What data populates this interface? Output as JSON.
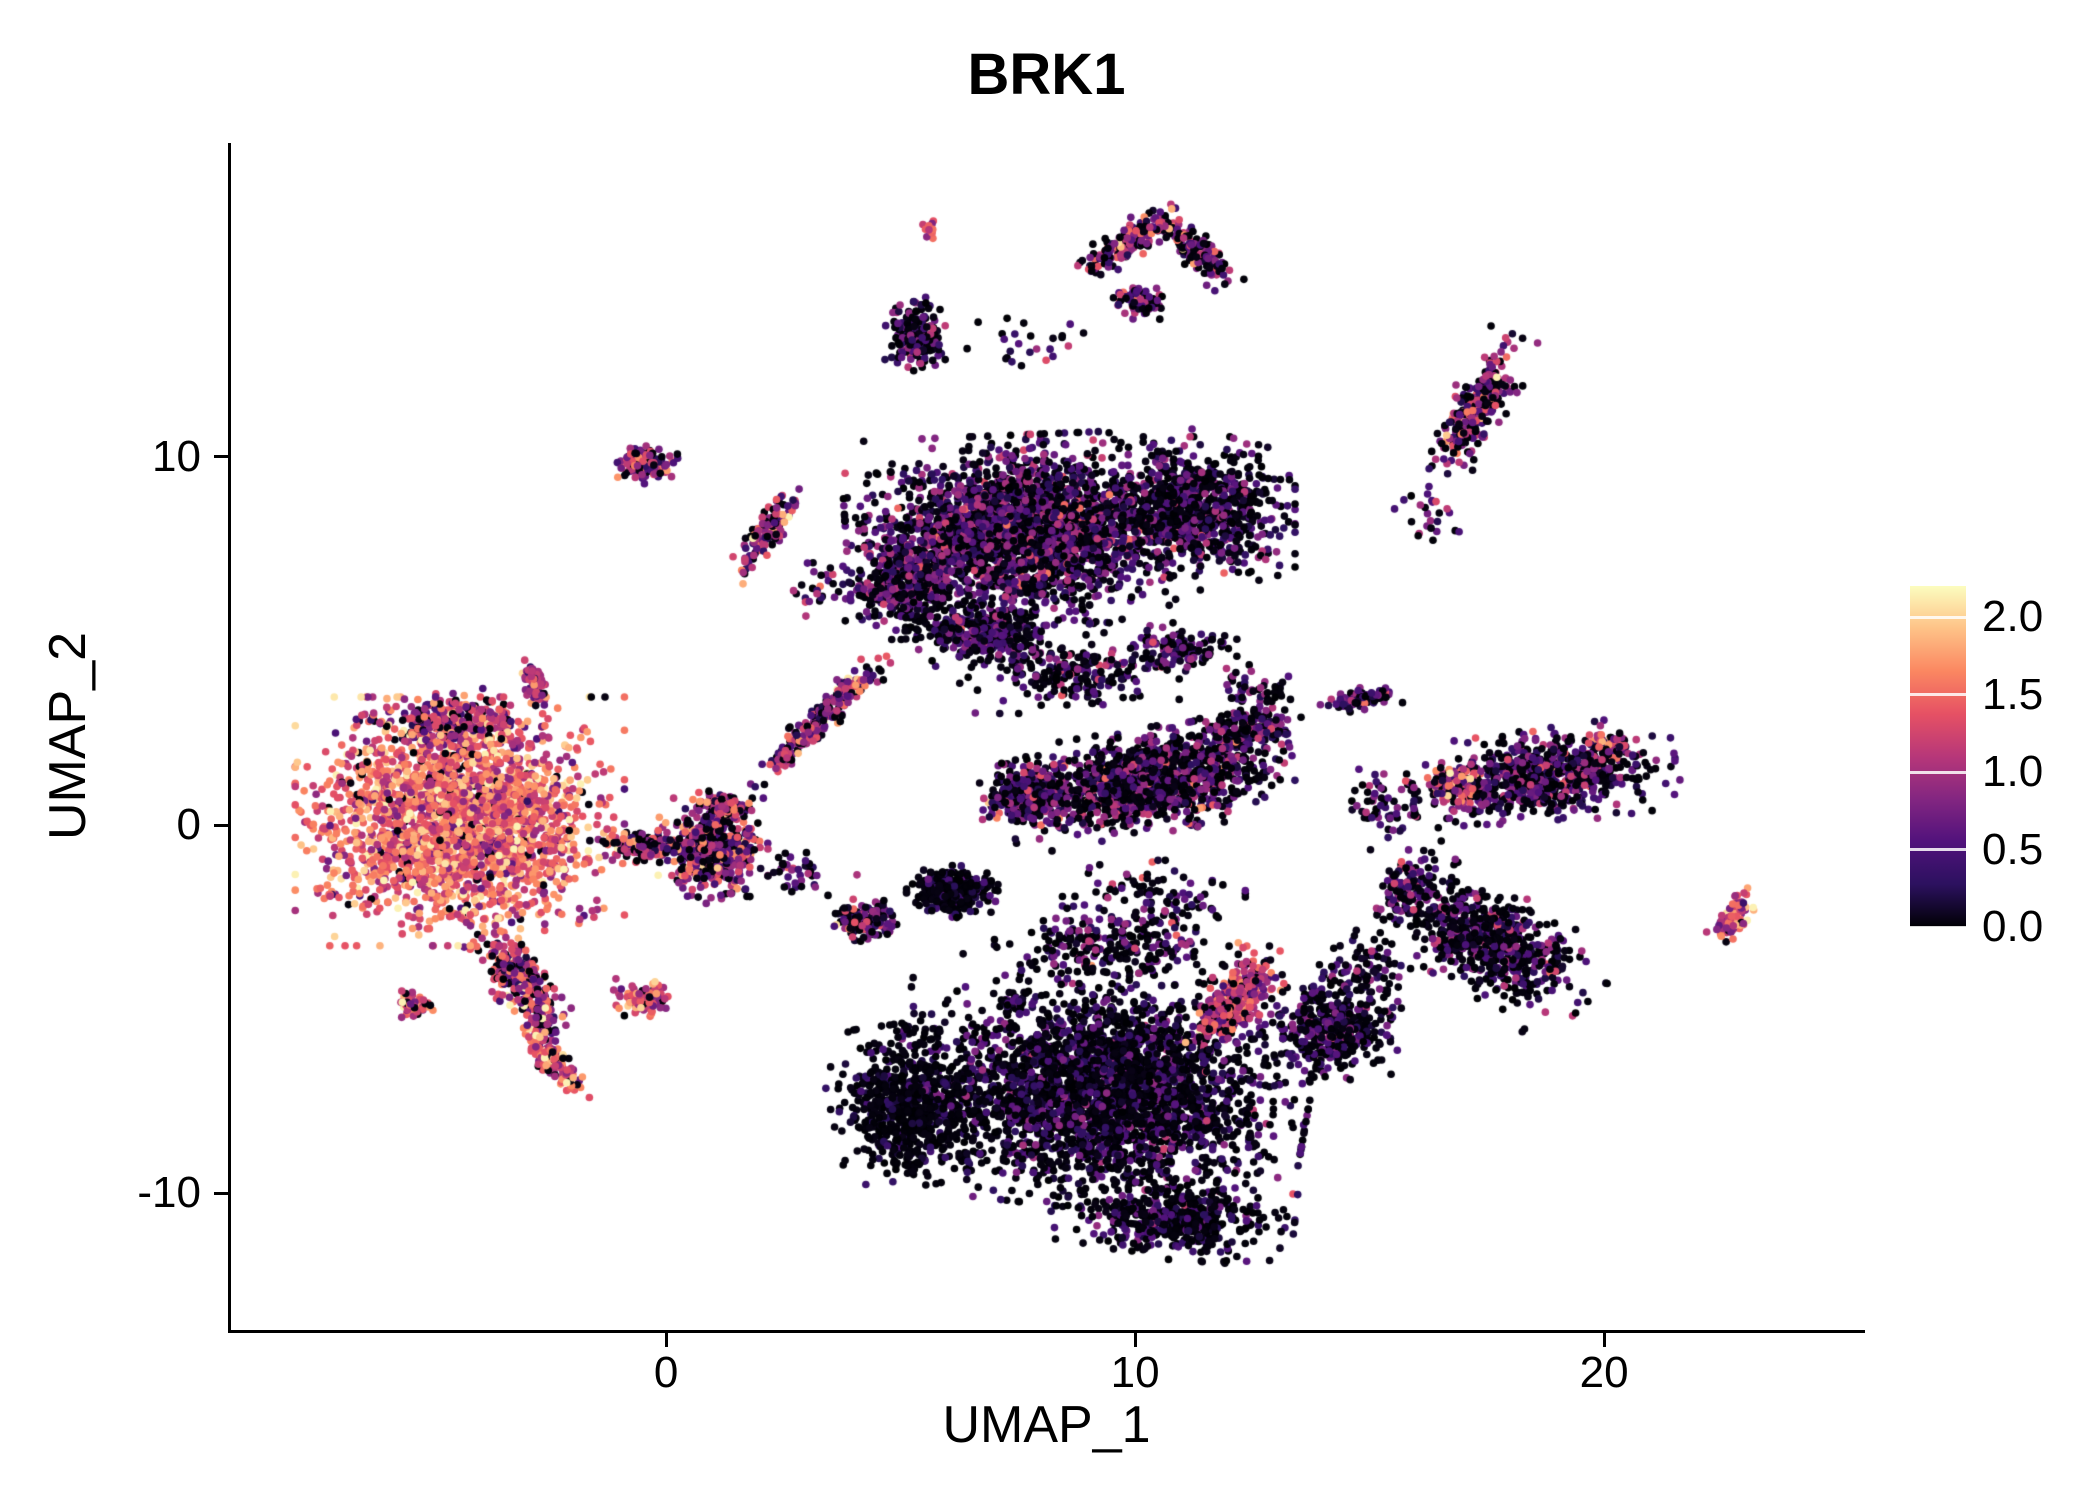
{
  "chart_data": {
    "type": "scatter",
    "title": "BRK1",
    "xlabel": "UMAP_1",
    "ylabel": "UMAP_2",
    "xlim": [
      -9.28,
      25.5
    ],
    "ylim": [
      -13.72,
      18.53
    ],
    "x_ticks": {
      "values": [
        0,
        10,
        20
      ],
      "labels": [
        "0",
        "10",
        "20"
      ]
    },
    "y_ticks": {
      "values": [
        -10,
        0,
        10
      ],
      "labels": [
        "-10",
        "0",
        "10"
      ]
    },
    "colorbar": {
      "ticks": [
        0,
        0.5,
        1,
        1.5,
        2
      ],
      "labels": [
        "0.0",
        "0.5",
        "1.0",
        "1.5",
        "2.0"
      ],
      "max": 2.2,
      "colormap": "magma",
      "position": "right"
    },
    "colormap_stops": [
      [
        0,
        "#000004"
      ],
      [
        0.125,
        "#2c115f"
      ],
      [
        0.25,
        "#51127c"
      ],
      [
        0.375,
        "#832681"
      ],
      [
        0.5,
        "#b73779"
      ],
      [
        0.625,
        "#e65164"
      ],
      [
        0.75,
        "#fb8761"
      ],
      [
        0.875,
        "#fec287"
      ],
      [
        1,
        "#fcfdbf"
      ]
    ],
    "grid": false,
    "legend_position": "right",
    "point_radius_px": 3.8,
    "seed": 1337,
    "clusters": [
      {
        "name": "left-main",
        "cx": -4.4,
        "cy": 0.1,
        "rx": 2.7,
        "ry": 2.6,
        "rot": 0,
        "n": 2600,
        "p0": 0.04,
        "mean": 1.45,
        "sd": 0.38
      },
      {
        "name": "left-top-fringe",
        "cx": -4.6,
        "cy": 2.8,
        "rx": 1.6,
        "ry": 0.7,
        "rot": 0,
        "n": 250,
        "p0": 0.15,
        "mean": 1.0,
        "sd": 0.45
      },
      {
        "name": "left-tail",
        "cx": -3.1,
        "cy": -4.3,
        "rx": 0.5,
        "ry": 1.5,
        "rot": 27,
        "n": 330,
        "p0": 0.12,
        "mean": 1.05,
        "sd": 0.5
      },
      {
        "name": "left-thin-tail",
        "cx": -2.4,
        "cy": -6.5,
        "rx": 0.3,
        "ry": 0.9,
        "rot": 27,
        "n": 140,
        "p0": 0.12,
        "mean": 1.3,
        "sd": 0.45
      },
      {
        "name": "left-small-clump",
        "cx": -5.4,
        "cy": -4.9,
        "rx": 0.35,
        "ry": 0.3,
        "rot": 0,
        "n": 55,
        "p0": 0.12,
        "mean": 1.3,
        "sd": 0.4
      },
      {
        "name": "left-bridge",
        "cx": -0.5,
        "cy": -0.6,
        "rx": 0.8,
        "ry": 0.35,
        "rot": -5,
        "n": 150,
        "p0": 0.3,
        "mean": 0.9,
        "sd": 0.5
      },
      {
        "name": "centerleft-blob",
        "cx": 1.0,
        "cy": -0.7,
        "rx": 0.9,
        "ry": 1.1,
        "rot": 0,
        "n": 520,
        "p0": 0.25,
        "mean": 0.85,
        "sd": 0.5
      },
      {
        "name": "centerleft-hook",
        "cx": 1.2,
        "cy": 0.5,
        "rx": 0.5,
        "ry": 0.3,
        "rot": -25,
        "n": 90,
        "p0": 0.15,
        "mean": 1.1,
        "sd": 0.4
      },
      {
        "name": "pink-clump-below",
        "cx": -0.5,
        "cy": -4.7,
        "rx": 0.55,
        "ry": 0.4,
        "rot": 0,
        "n": 120,
        "p0": 0.1,
        "mean": 1.3,
        "sd": 0.4
      },
      {
        "name": "top-main",
        "cx": 7.6,
        "cy": 8.0,
        "rx": 2.9,
        "ry": 2.0,
        "rot": 3,
        "n": 2600,
        "p0": 0.38,
        "mean": 0.55,
        "sd": 0.38
      },
      {
        "name": "top-right-lobe",
        "cx": 11.2,
        "cy": 8.6,
        "rx": 1.7,
        "ry": 1.5,
        "rot": 0,
        "n": 900,
        "p0": 0.45,
        "mean": 0.45,
        "sd": 0.35
      },
      {
        "name": "top-left-lobe",
        "cx": 5.2,
        "cy": 6.6,
        "rx": 1.1,
        "ry": 1.2,
        "rot": 0,
        "n": 450,
        "p0": 0.4,
        "mean": 0.5,
        "sd": 0.35
      },
      {
        "name": "top-bottom-tail",
        "cx": 6.8,
        "cy": 5.2,
        "rx": 1.3,
        "ry": 0.7,
        "rot": 0,
        "n": 350,
        "p0": 0.45,
        "mean": 0.45,
        "sd": 0.35
      },
      {
        "name": "top-below-scatter",
        "cx": 8.6,
        "cy": 4.2,
        "rx": 1.8,
        "ry": 0.9,
        "rot": 0,
        "n": 220,
        "p0": 0.5,
        "mean": 0.45,
        "sd": 0.4
      },
      {
        "name": "top-southeast-bits",
        "cx": 11.0,
        "cy": 4.8,
        "rx": 0.9,
        "ry": 0.6,
        "rot": 0,
        "n": 120,
        "p0": 0.45,
        "mean": 0.45,
        "sd": 0.4
      },
      {
        "name": "diag-streak",
        "cx": 3.4,
        "cy": 3.0,
        "rx": 0.3,
        "ry": 1.9,
        "rot": -38,
        "n": 260,
        "p0": 0.2,
        "mean": 0.85,
        "sd": 0.5
      },
      {
        "name": "streak-2-8",
        "cx": 2.1,
        "cy": 7.9,
        "rx": 0.3,
        "ry": 1.1,
        "rot": -30,
        "n": 130,
        "p0": 0.2,
        "mean": 0.9,
        "sd": 0.5
      },
      {
        "name": "clump-0-10",
        "cx": -0.45,
        "cy": 9.8,
        "rx": 0.55,
        "ry": 0.4,
        "rot": -10,
        "n": 130,
        "p0": 0.22,
        "mean": 0.95,
        "sd": 0.5
      },
      {
        "name": "streak-m3-4",
        "cx": -2.8,
        "cy": 3.9,
        "rx": 0.2,
        "ry": 0.6,
        "rot": 10,
        "n": 75,
        "p0": 0.1,
        "mean": 1.15,
        "sd": 0.45
      },
      {
        "name": "top-dark-clump",
        "cx": 5.3,
        "cy": 13.3,
        "rx": 0.5,
        "ry": 0.8,
        "rot": 0,
        "n": 210,
        "p0": 0.5,
        "mean": 0.45,
        "sd": 0.4
      },
      {
        "name": "tiny-pink-pair",
        "cx": 5.65,
        "cy": 16.1,
        "rx": 0.18,
        "ry": 0.3,
        "rot": 0,
        "n": 14,
        "p0": 0.05,
        "mean": 1.4,
        "sd": 0.3
      },
      {
        "name": "arc-left",
        "cx": 9.8,
        "cy": 15.8,
        "rx": 0.35,
        "ry": 1.1,
        "rot": -48,
        "n": 190,
        "p0": 0.25,
        "mean": 0.9,
        "sd": 0.5
      },
      {
        "name": "arc-right",
        "cx": 11.3,
        "cy": 15.6,
        "rx": 0.35,
        "ry": 1.0,
        "rot": 40,
        "n": 140,
        "p0": 0.3,
        "mean": 0.8,
        "sd": 0.5
      },
      {
        "name": "arc-hang",
        "cx": 10.1,
        "cy": 14.2,
        "rx": 0.6,
        "ry": 0.4,
        "rot": 0,
        "n": 80,
        "p0": 0.3,
        "mean": 0.7,
        "sd": 0.5
      },
      {
        "name": "topright-cluster",
        "cx": 17.3,
        "cy": 11.4,
        "rx": 0.5,
        "ry": 1.6,
        "rot": -25,
        "n": 270,
        "p0": 0.28,
        "mean": 0.9,
        "sd": 0.5
      },
      {
        "name": "streak-15-3",
        "cx": 14.8,
        "cy": 3.4,
        "rx": 0.7,
        "ry": 0.25,
        "rot": 10,
        "n": 85,
        "p0": 0.35,
        "mean": 0.6,
        "sd": 0.4
      },
      {
        "name": "mid-main",
        "cx": 10.3,
        "cy": 1.2,
        "rx": 2.4,
        "ry": 1.1,
        "rot": 12,
        "n": 1300,
        "p0": 0.42,
        "mean": 0.55,
        "sd": 0.42
      },
      {
        "name": "mid-left-hook",
        "cx": 7.7,
        "cy": 0.8,
        "rx": 0.8,
        "ry": 0.75,
        "rot": 0,
        "n": 260,
        "p0": 0.35,
        "mean": 0.6,
        "sd": 0.45
      },
      {
        "name": "mid-top-arm",
        "cx": 12.4,
        "cy": 2.6,
        "rx": 0.9,
        "ry": 0.5,
        "rot": 25,
        "n": 150,
        "p0": 0.4,
        "mean": 0.5,
        "sd": 0.4
      },
      {
        "name": "dark-clump-6",
        "cx": 6.1,
        "cy": -1.8,
        "rx": 0.75,
        "ry": 0.55,
        "rot": 0,
        "n": 320,
        "p0": 0.7,
        "mean": 0.22,
        "sd": 0.25
      },
      {
        "name": "clump-4",
        "cx": 4.3,
        "cy": -2.6,
        "rx": 0.55,
        "ry": 0.45,
        "rot": 0,
        "n": 160,
        "p0": 0.3,
        "mean": 0.7,
        "sd": 0.5
      },
      {
        "name": "tiny-7-m5",
        "cx": 7.4,
        "cy": -4.8,
        "rx": 0.3,
        "ry": 0.25,
        "rot": 0,
        "n": 35,
        "p0": 0.4,
        "mean": 0.55,
        "sd": 0.4
      },
      {
        "name": "bottom-main",
        "cx": 9.3,
        "cy": -7.2,
        "rx": 3.4,
        "ry": 2.5,
        "rot": -8,
        "n": 3000,
        "p0": 0.55,
        "mean": 0.35,
        "sd": 0.32
      },
      {
        "name": "bottom-left-dark",
        "cx": 5.2,
        "cy": -7.6,
        "rx": 1.3,
        "ry": 1.7,
        "rot": 10,
        "n": 700,
        "p0": 0.78,
        "mean": 0.15,
        "sd": 0.2
      },
      {
        "name": "bottom-tail",
        "cx": 10.8,
        "cy": -10.7,
        "rx": 2.0,
        "ry": 0.85,
        "rot": -5,
        "n": 480,
        "p0": 0.6,
        "mean": 0.3,
        "sd": 0.3
      },
      {
        "name": "bottom-pink-patch",
        "cx": 12.1,
        "cy": -4.8,
        "rx": 0.55,
        "ry": 1.3,
        "rot": -30,
        "n": 320,
        "p0": 0.15,
        "mean": 1.2,
        "sd": 0.4
      },
      {
        "name": "bottom-right-ext",
        "cx": 14.2,
        "cy": -5.5,
        "rx": 1.1,
        "ry": 1.1,
        "rot": 0,
        "n": 380,
        "p0": 0.5,
        "mean": 0.45,
        "sd": 0.35
      },
      {
        "name": "bottom-top-scatter",
        "cx": 9.6,
        "cy": -3.3,
        "rx": 2.0,
        "ry": 0.8,
        "rot": 0,
        "n": 240,
        "p0": 0.45,
        "mean": 0.5,
        "sd": 0.45
      },
      {
        "name": "rightbottom-cluster",
        "cx": 17.6,
        "cy": -3.2,
        "rx": 2.0,
        "ry": 1.1,
        "rot": -40,
        "n": 650,
        "p0": 0.5,
        "mean": 0.45,
        "sd": 0.38
      },
      {
        "name": "rightbottom-neck",
        "cx": 15.9,
        "cy": -1.7,
        "rx": 0.6,
        "ry": 0.8,
        "rot": -20,
        "n": 140,
        "p0": 0.4,
        "mean": 0.55,
        "sd": 0.4
      },
      {
        "name": "right-cluster",
        "cx": 18.7,
        "cy": 1.3,
        "rx": 2.2,
        "ry": 1.0,
        "rot": 10,
        "n": 780,
        "p0": 0.4,
        "mean": 0.55,
        "sd": 0.4
      },
      {
        "name": "right-pink-spot",
        "cx": 16.8,
        "cy": 1.1,
        "rx": 0.45,
        "ry": 0.45,
        "rot": 0,
        "n": 110,
        "p0": 0.1,
        "mean": 1.3,
        "sd": 0.4
      },
      {
        "name": "right-pink-top",
        "cx": 20.1,
        "cy": 2.2,
        "rx": 0.4,
        "ry": 0.3,
        "rot": 0,
        "n": 40,
        "p0": 0.15,
        "mean": 1.2,
        "sd": 0.4
      },
      {
        "name": "far-right-small",
        "cx": 22.75,
        "cy": -2.5,
        "rx": 0.3,
        "ry": 0.65,
        "rot": -20,
        "n": 80,
        "p0": 0.1,
        "mean": 1.3,
        "sd": 0.4
      },
      {
        "name": "strays-b-n",
        "cx": 2.9,
        "cy": -1.3,
        "rx": 0.9,
        "ry": 0.6,
        "rot": 0,
        "n": 40,
        "p0": 0.35,
        "mean": 0.6,
        "sd": 0.45
      },
      {
        "name": "strays-mid-bottom",
        "cx": 10.4,
        "cy": -2.0,
        "rx": 1.5,
        "ry": 0.8,
        "rot": 0,
        "n": 100,
        "p0": 0.5,
        "mean": 0.5,
        "sd": 0.4
      },
      {
        "name": "strays-15-0",
        "cx": 15.3,
        "cy": 0.5,
        "rx": 1.0,
        "ry": 0.9,
        "rot": 0,
        "n": 60,
        "p0": 0.4,
        "mean": 0.6,
        "sd": 0.4
      },
      {
        "name": "strays-below-k",
        "cx": 16.3,
        "cy": 8.4,
        "rx": 0.7,
        "ry": 0.9,
        "rot": 0,
        "n": 25,
        "p0": 0.4,
        "mean": 0.6,
        "sd": 0.4
      },
      {
        "name": "strays-d-m",
        "cx": 12.5,
        "cy": 3.7,
        "rx": 0.8,
        "ry": 0.5,
        "rot": 0,
        "n": 45,
        "p0": 0.4,
        "mean": 0.5,
        "sd": 0.4
      },
      {
        "name": "strays-top",
        "cx": 7.5,
        "cy": 13.0,
        "rx": 1.1,
        "ry": 0.8,
        "rot": 0,
        "n": 25,
        "p0": 0.4,
        "mean": 0.6,
        "sd": 0.5
      },
      {
        "name": "strays-left-of-top",
        "cx": 3.3,
        "cy": 6.3,
        "rx": 0.5,
        "ry": 0.7,
        "rot": 0,
        "n": 25,
        "p0": 0.3,
        "mean": 0.8,
        "sd": 0.5
      },
      {
        "name": "strays-p-o",
        "cx": 14.9,
        "cy": -4.0,
        "rx": 0.9,
        "ry": 1.0,
        "rot": 0,
        "n": 90,
        "p0": 0.5,
        "mean": 0.45,
        "sd": 0.4
      }
    ]
  }
}
